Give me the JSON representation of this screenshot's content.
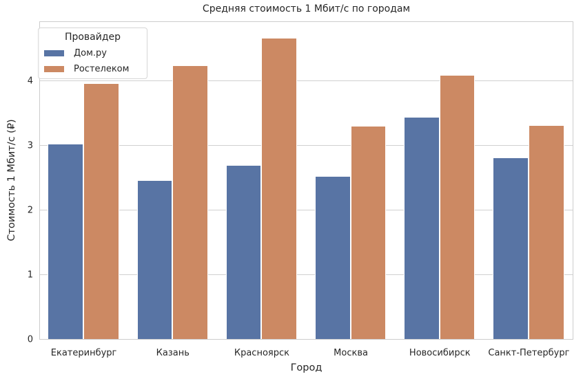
{
  "chart_data": {
    "type": "bar",
    "title": "Средняя стоимость 1 Мбит/с по городам",
    "xlabel": "Город",
    "ylabel": "Стоимость 1 Мбит/с (₽)",
    "categories": [
      "Екатеринбург",
      "Казань",
      "Красноярск",
      "Москва",
      "Новосибирск",
      "Санкт-Петербург"
    ],
    "series": [
      {
        "name": "Дом.ру",
        "color": "#5874a4",
        "values": [
          3.03,
          2.47,
          2.7,
          2.53,
          3.45,
          2.82
        ]
      },
      {
        "name": "Ростелеком",
        "color": "#cc8963",
        "values": [
          3.97,
          4.24,
          4.67,
          3.31,
          4.1,
          3.32
        ]
      }
    ],
    "ylim": [
      0,
      4.92
    ],
    "yticks": [
      0,
      1,
      2,
      3,
      4
    ],
    "grid": true,
    "legend": {
      "title": "Провайдер",
      "position": "upper left"
    }
  },
  "labels": {
    "title": "Средняя стоимость 1 Мбит/с по городам",
    "xlabel": "Город",
    "ylabel": "Стоимость 1 Мбит/с (₽)",
    "legend_title": "Провайдер",
    "legend_items": [
      "Дом.ру",
      "Ростелеком"
    ],
    "yticks": [
      "0",
      "1",
      "2",
      "3",
      "4"
    ],
    "xticks": [
      "Екатеринбург",
      "Казань",
      "Красноярск",
      "Москва",
      "Новосибирск",
      "Санкт-Петербург"
    ]
  }
}
